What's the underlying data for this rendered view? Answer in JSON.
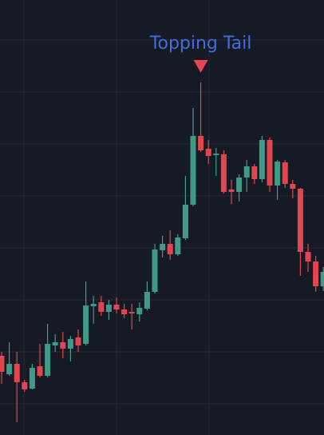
{
  "chart_data": {
    "type": "candlestick",
    "annotation": "Topping Tail",
    "annotation_color": "#3d6fe0",
    "marker_color": "#e8454f",
    "up_color": "#419a87",
    "down_color": "#e0464f",
    "grid": true,
    "ylim": [
      0,
      544
    ],
    "open": [
      99,
      76,
      89,
      66,
      58,
      86,
      74,
      112,
      116,
      108,
      122,
      114,
      161,
      166,
      154,
      163,
      157,
      154,
      151,
      158,
      179,
      231,
      239,
      226,
      246,
      288,
      374,
      358,
      350,
      351,
      307,
      304,
      322,
      336,
      320,
      369,
      312,
      341,
      314,
      308,
      229,
      217,
      186
    ],
    "high": [
      104,
      116,
      104,
      69,
      89,
      114,
      139,
      126,
      129,
      124,
      132,
      192,
      174,
      174,
      169,
      172,
      164,
      164,
      166,
      192,
      239,
      249,
      256,
      251,
      324,
      409,
      441,
      369,
      359,
      356,
      319,
      326,
      344,
      339,
      374,
      372,
      344,
      344,
      319,
      309,
      239,
      224,
      210
    ],
    "low": [
      64,
      74,
      16,
      54,
      57,
      72,
      72,
      104,
      96,
      92,
      104,
      112,
      139,
      149,
      144,
      152,
      146,
      132,
      142,
      156,
      177,
      222,
      219,
      224,
      244,
      286,
      354,
      339,
      324,
      302,
      289,
      292,
      304,
      314,
      316,
      304,
      294,
      309,
      296,
      199,
      204,
      179,
      180
    ],
    "close": [
      79,
      89,
      66,
      57,
      84,
      74,
      114,
      116,
      108,
      120,
      112,
      162,
      164,
      154,
      163,
      157,
      151,
      152,
      159,
      179,
      232,
      239,
      226,
      247,
      288,
      374,
      356,
      349,
      352,
      304,
      304,
      322,
      336,
      320,
      369,
      312,
      342,
      314,
      308,
      229,
      217,
      186,
      204
    ]
  }
}
